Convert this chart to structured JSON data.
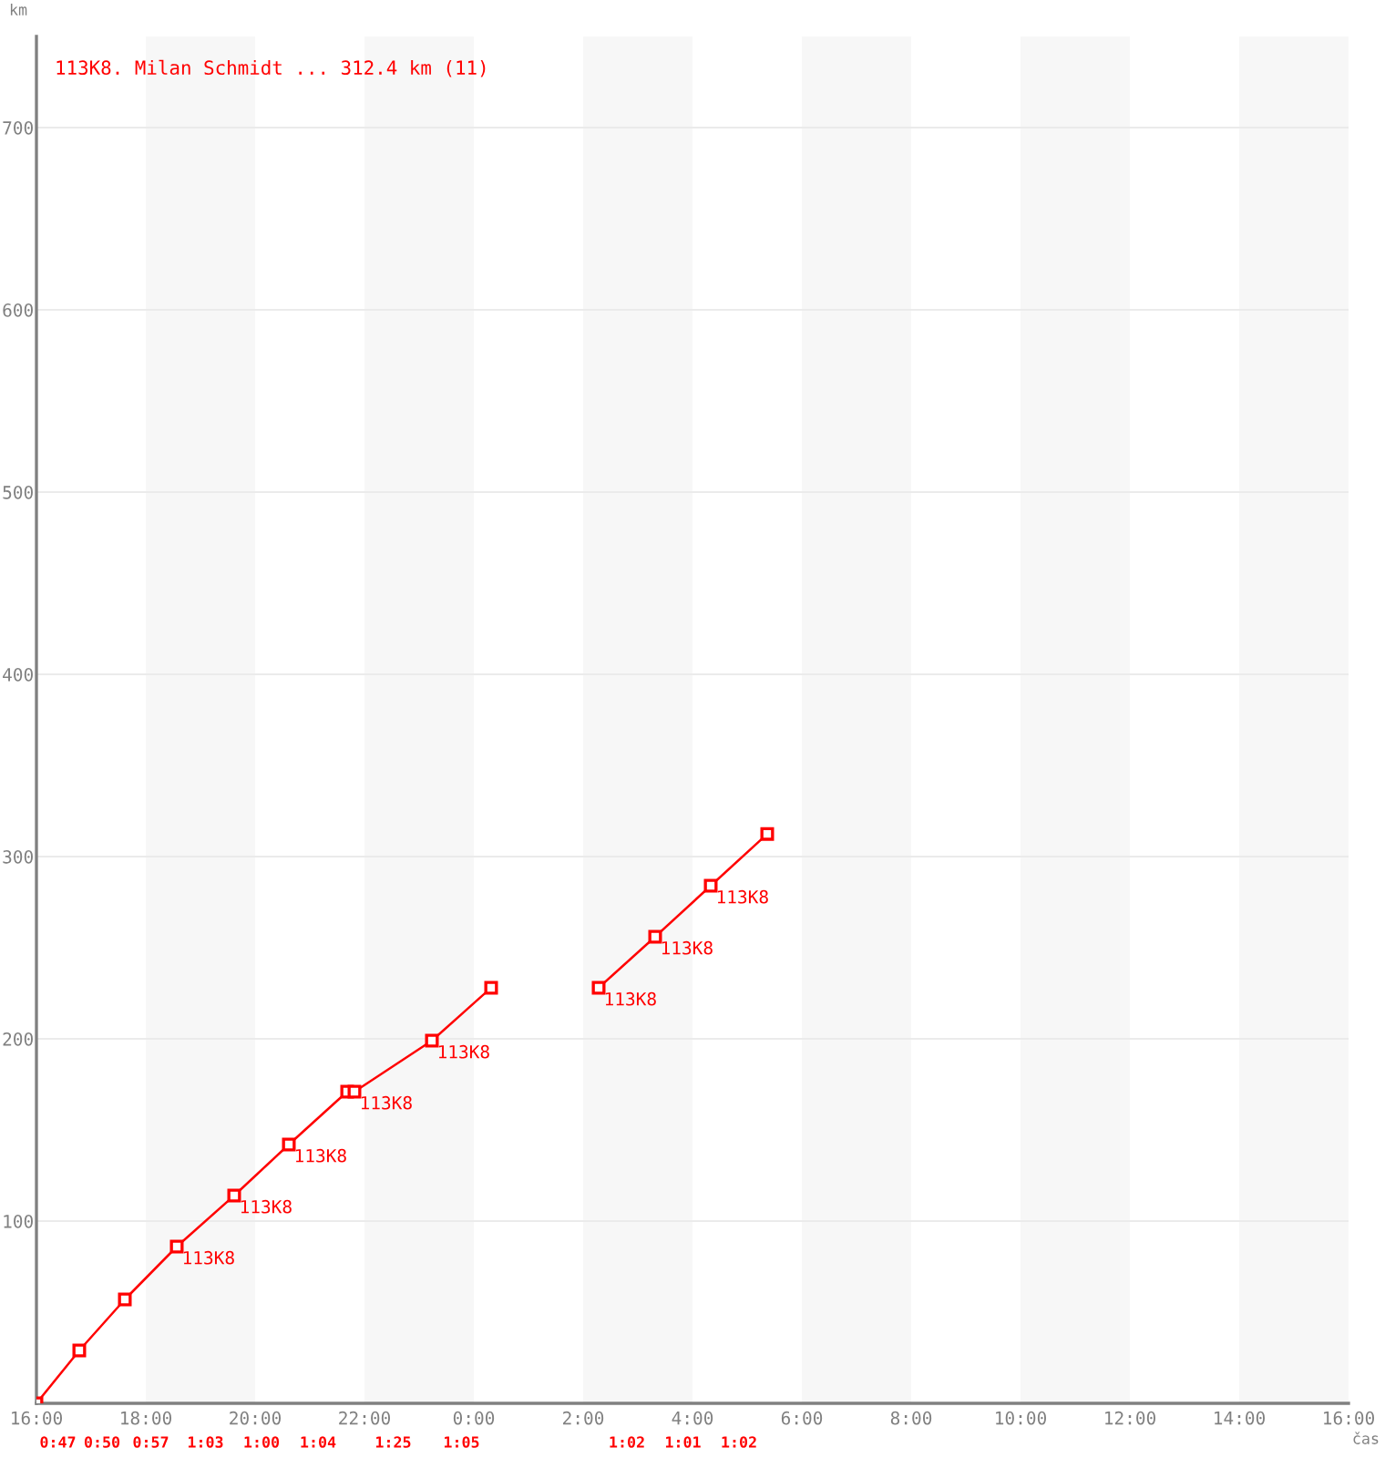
{
  "chart_data": {
    "type": "line",
    "title": "113K8. Milan Schmidt ... 312.4 km (11)",
    "xlabel": "čas",
    "ylabel": "km",
    "series": [
      {
        "color": "#ff0000",
        "x": [
          "2000-01-01T16:00",
          "2000-01-01T16:47",
          "2000-01-01T17:37",
          "2000-01-01T18:34",
          "2000-01-01T19:37",
          "2000-01-01T20:37",
          "2000-01-01T21:41",
          "2000-01-01T21:49",
          "2000-01-01T23:14",
          "2000-01-02T00:19"
        ],
        "values": [
          0,
          29,
          57,
          86,
          114,
          142,
          171,
          171,
          199,
          228
        ]
      },
      {
        "color": "#ff0000",
        "x": [
          "2000-01-02T02:17",
          "2000-01-02T03:19",
          "2000-01-02T04:20",
          "2000-01-02T05:22"
        ],
        "values": [
          228,
          256,
          284,
          312.4
        ]
      }
    ],
    "xlim": [
      "2000-01-01T16:00",
      "2000-01-02T16:00"
    ],
    "xticks": [
      {
        "value": "2000-01-01T16:00",
        "label": "16:00"
      },
      {
        "value": "2000-01-01T18:00",
        "label": "18:00"
      },
      {
        "value": "2000-01-01T20:00",
        "label": "20:00"
      },
      {
        "value": "2000-01-01T22:00",
        "label": "22:00"
      },
      {
        "value": "2000-01-02T00:00",
        "label": "0:00"
      },
      {
        "value": "2000-01-02T02:00",
        "label": "2:00"
      },
      {
        "value": "2000-01-02T04:00",
        "label": "4:00"
      },
      {
        "value": "2000-01-02T06:00",
        "label": "6:00"
      },
      {
        "value": "2000-01-02T08:00",
        "label": "8:00"
      },
      {
        "value": "2000-01-02T10:00",
        "label": "10:00"
      },
      {
        "value": "2000-01-02T12:00",
        "label": "12:00"
      },
      {
        "value": "2000-01-02T14:00",
        "label": "14:00"
      },
      {
        "value": "2000-01-02T16:00",
        "label": "16:00"
      }
    ],
    "ylim": [
      0,
      750
    ],
    "yticks": [
      100,
      200,
      300,
      400,
      500,
      600,
      700
    ],
    "grid": "y",
    "marker": "square",
    "line_style": "solid",
    "bands": [
      {
        "axis": "x",
        "from": "2000-01-01T18:00",
        "to": "2000-01-01T20:00",
        "color": "#f7f7f7"
      },
      {
        "axis": "x",
        "from": "2000-01-01T22:00",
        "to": "2000-01-02T00:00",
        "color": "#f7f7f7"
      },
      {
        "axis": "x",
        "from": "2000-01-02T02:00",
        "to": "2000-01-02T04:00",
        "color": "#f7f7f7"
      },
      {
        "axis": "x",
        "from": "2000-01-02T06:00",
        "to": "2000-01-02T08:00",
        "color": "#f7f7f7"
      },
      {
        "axis": "x",
        "from": "2000-01-02T10:00",
        "to": "2000-01-02T12:00",
        "color": "#f7f7f7"
      },
      {
        "axis": "x",
        "from": "2000-01-02T14:00",
        "to": "2000-01-02T16:00",
        "color": "#f7f7f7"
      }
    ],
    "annotations": [
      {
        "text": "113K8",
        "x": "2000-01-01T18:34",
        "y": 86
      },
      {
        "text": "113K8",
        "x": "2000-01-01T19:37",
        "y": 114
      },
      {
        "text": "113K8",
        "x": "2000-01-01T20:37",
        "y": 142
      },
      {
        "text": "113K8",
        "x": "2000-01-01T21:49",
        "y": 171
      },
      {
        "text": "113K8",
        "x": "2000-01-01T23:14",
        "y": 199
      },
      {
        "text": "113K8",
        "x": "2000-01-02T02:17",
        "y": 228
      },
      {
        "text": "113K8",
        "x": "2000-01-02T03:19",
        "y": 256
      },
      {
        "text": "113K8",
        "x": "2000-01-02T04:20",
        "y": 284
      },
      "0:47",
      "0:50",
      "0:57",
      "1:03",
      "1:00",
      "1:04",
      "1:25",
      "1:05",
      "1:02",
      "1:01",
      "1:02"
    ]
  }
}
